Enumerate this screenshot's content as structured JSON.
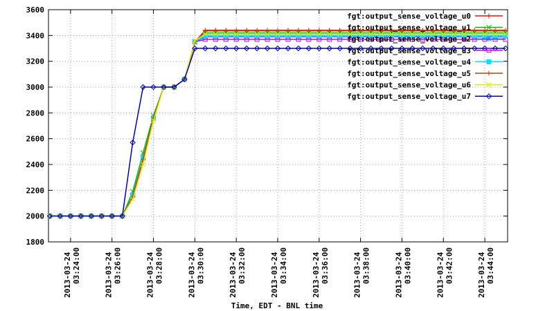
{
  "chart_data": {
    "type": "line",
    "x_label": "Time, EDT - BNL time",
    "x": [
      "2013-03-24 03:23:00",
      "2013-03-24 03:23:30",
      "2013-03-24 03:24:00",
      "2013-03-24 03:24:30",
      "2013-03-24 03:25:00",
      "2013-03-24 03:25:30",
      "2013-03-24 03:26:00",
      "2013-03-24 03:26:30",
      "2013-03-24 03:27:00",
      "2013-03-24 03:27:30",
      "2013-03-24 03:28:00",
      "2013-03-24 03:28:30",
      "2013-03-24 03:29:00",
      "2013-03-24 03:29:30",
      "2013-03-24 03:30:00",
      "2013-03-24 03:30:30",
      "2013-03-24 03:31:00",
      "2013-03-24 03:31:30",
      "2013-03-24 03:32:00",
      "2013-03-24 03:32:30",
      "2013-03-24 03:33:00",
      "2013-03-24 03:33:30",
      "2013-03-24 03:34:00",
      "2013-03-24 03:34:30",
      "2013-03-24 03:35:00",
      "2013-03-24 03:35:30",
      "2013-03-24 03:36:00",
      "2013-03-24 03:36:30",
      "2013-03-24 03:37:00",
      "2013-03-24 03:37:30",
      "2013-03-24 03:38:00",
      "2013-03-24 03:38:30",
      "2013-03-24 03:39:00",
      "2013-03-24 03:39:30",
      "2013-03-24 03:40:00",
      "2013-03-24 03:40:30",
      "2013-03-24 03:41:00",
      "2013-03-24 03:41:30",
      "2013-03-24 03:42:00",
      "2013-03-24 03:42:30",
      "2013-03-24 03:43:00",
      "2013-03-24 03:43:30",
      "2013-03-24 03:44:00",
      "2013-03-24 03:44:30",
      "2013-03-24 03:45:00"
    ],
    "xlim": [
      "2013-03-24 03:22:56",
      "2013-03-24 03:45:06"
    ],
    "xticks": [
      "2013-03-24 03:24:00",
      "2013-03-24 03:26:00",
      "2013-03-24 03:28:00",
      "2013-03-24 03:30:00",
      "2013-03-24 03:32:00",
      "2013-03-24 03:34:00",
      "2013-03-24 03:36:00",
      "2013-03-24 03:38:00",
      "2013-03-24 03:40:00",
      "2013-03-24 03:42:00",
      "2013-03-24 03:44:00"
    ],
    "ylim": [
      1800,
      3600
    ],
    "yticks": [
      1800,
      2000,
      2200,
      2400,
      2600,
      2800,
      3000,
      3200,
      3400,
      3600
    ],
    "grid": true,
    "legend": "top-right",
    "series": [
      {
        "name": "fgt:output_sense_voltage_u0",
        "color": "#ff0000",
        "marker": "plus",
        "values": [
          2000,
          2000,
          2000,
          2000,
          2000,
          2000,
          2000,
          2000,
          2150,
          2440,
          2760,
          3000,
          3000,
          3060,
          3350,
          3440,
          3440,
          3440,
          3440,
          3440,
          3440,
          3440,
          3440,
          3440,
          3440,
          3440,
          3440,
          3440,
          3440,
          3440,
          3440,
          3440,
          3440,
          3440,
          3440,
          3440,
          3440,
          3440,
          3440,
          3440,
          3440,
          3440,
          3440,
          3440,
          3440
        ]
      },
      {
        "name": "fgt:output_sense_voltage_u1",
        "color": "#00c000",
        "marker": "cross",
        "values": [
          2000,
          2000,
          2000,
          2000,
          2000,
          2000,
          2000,
          2000,
          2190,
          2490,
          2780,
          3000,
          3000,
          3060,
          3350,
          3420,
          3420,
          3420,
          3420,
          3420,
          3420,
          3420,
          3420,
          3420,
          3420,
          3420,
          3420,
          3420,
          3420,
          3420,
          3420,
          3420,
          3420,
          3420,
          3420,
          3420,
          3420,
          3420,
          3420,
          3420,
          3420,
          3420,
          3420,
          3420,
          3420
        ]
      },
      {
        "name": "fgt:output_sense_voltage_u2",
        "color": "#0080ff",
        "marker": "star",
        "values": [
          2000,
          2000,
          2000,
          2000,
          2000,
          2000,
          2000,
          2000,
          2160,
          2450,
          2760,
          3000,
          3000,
          3060,
          3350,
          3390,
          3390,
          3390,
          3390,
          3390,
          3390,
          3390,
          3390,
          3390,
          3390,
          3390,
          3390,
          3390,
          3390,
          3390,
          3390,
          3390,
          3390,
          3390,
          3390,
          3390,
          3390,
          3390,
          3390,
          3390,
          3390,
          3390,
          3390,
          3390,
          3390
        ]
      },
      {
        "name": "fgt:output_sense_voltage_u3",
        "color": "#c000ff",
        "marker": "square",
        "values": [
          2000,
          2000,
          2000,
          2000,
          2000,
          2000,
          2000,
          2000,
          2160,
          2450,
          2760,
          3000,
          3000,
          3060,
          3350,
          3370,
          3370,
          3370,
          3370,
          3370,
          3370,
          3370,
          3370,
          3370,
          3370,
          3370,
          3370,
          3370,
          3370,
          3370,
          3370,
          3370,
          3370,
          3370,
          3370,
          3370,
          3370,
          3370,
          3370,
          3370,
          3370,
          3370,
          3370,
          3370,
          3370
        ]
      },
      {
        "name": "fgt:output_sense_voltage_u4",
        "color": "#00e0ff",
        "marker": "filled-square",
        "values": [
          2000,
          2000,
          2000,
          2000,
          2000,
          2000,
          2000,
          2000,
          2160,
          2450,
          2760,
          3000,
          3000,
          3060,
          3350,
          3400,
          3400,
          3400,
          3400,
          3400,
          3400,
          3400,
          3400,
          3400,
          3400,
          3400,
          3400,
          3400,
          3400,
          3400,
          3400,
          3400,
          3400,
          3400,
          3400,
          3400,
          3400,
          3400,
          3400,
          3400,
          3400,
          3400,
          3400,
          3400,
          3400
        ]
      },
      {
        "name": "fgt:output_sense_voltage_u5",
        "color": "#c04000",
        "marker": "plus",
        "values": [
          2000,
          2000,
          2000,
          2000,
          2000,
          2000,
          2000,
          2000,
          2150,
          2440,
          2760,
          3000,
          3000,
          3060,
          3350,
          3435,
          3435,
          3435,
          3435,
          3435,
          3435,
          3435,
          3435,
          3435,
          3435,
          3435,
          3435,
          3435,
          3435,
          3435,
          3435,
          3435,
          3435,
          3435,
          3435,
          3435,
          3435,
          3435,
          3435,
          3435,
          3435,
          3435,
          3435,
          3435,
          3435
        ]
      },
      {
        "name": "fgt:output_sense_voltage_u6",
        "color": "#e8e800",
        "marker": "cross",
        "values": [
          2000,
          2000,
          2000,
          2000,
          2000,
          2000,
          2000,
          2000,
          2130,
          2400,
          2740,
          3000,
          3000,
          3060,
          3360,
          3410,
          3410,
          3410,
          3410,
          3410,
          3410,
          3410,
          3410,
          3410,
          3410,
          3410,
          3410,
          3410,
          3410,
          3410,
          3410,
          3410,
          3410,
          3410,
          3410,
          3410,
          3410,
          3410,
          3410,
          3410,
          3410,
          3410,
          3410,
          3410,
          3410
        ]
      },
      {
        "name": "fgt:output_sense_voltage_u7",
        "color": "#0000b0",
        "marker": "diamond",
        "values": [
          2000,
          2000,
          2000,
          2000,
          2000,
          2000,
          2000,
          2000,
          2570,
          3000,
          3000,
          3000,
          3000,
          3060,
          3300,
          3300,
          3300,
          3300,
          3300,
          3300,
          3300,
          3300,
          3300,
          3300,
          3300,
          3300,
          3300,
          3300,
          3300,
          3300,
          3300,
          3300,
          3300,
          3300,
          3300,
          3300,
          3300,
          3300,
          3300,
          3300,
          3300,
          3300,
          3300,
          3300,
          3300
        ]
      }
    ]
  }
}
